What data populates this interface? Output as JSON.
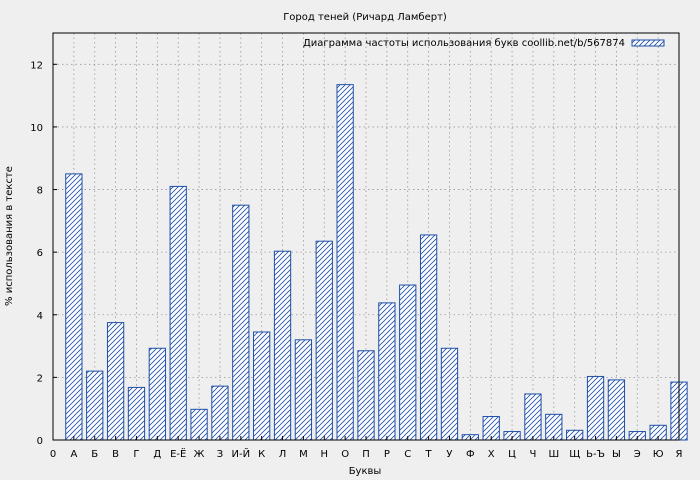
{
  "chart_data": {
    "type": "bar",
    "title": "Город теней (Ричард Ламберт)",
    "xlabel": "Буквы",
    "ylabel": "% использования в тексте",
    "legend": "Диаграмма частоты использования букв coollib.net/b/567874",
    "legend_position": "top-right",
    "grid": true,
    "ylim": [
      0,
      13
    ],
    "yticks": [
      0,
      2,
      4,
      6,
      8,
      10,
      12
    ],
    "x_origin_label": "0",
    "categories": [
      "А",
      "Б",
      "В",
      "Г",
      "Д",
      "Е-Ё",
      "Ж",
      "З",
      "И-Й",
      "К",
      "Л",
      "М",
      "Н",
      "О",
      "П",
      "Р",
      "С",
      "Т",
      "У",
      "Ф",
      "Х",
      "Ц",
      "Ч",
      "Ш",
      "Щ",
      "Ь-Ъ",
      "Ы",
      "Э",
      "Ю",
      "Я"
    ],
    "values": [
      8.5,
      2.2,
      3.75,
      1.68,
      2.93,
      8.1,
      0.98,
      1.72,
      7.5,
      3.45,
      6.03,
      3.2,
      6.35,
      11.35,
      2.85,
      4.38,
      4.95,
      6.55,
      2.93,
      0.17,
      0.75,
      0.27,
      1.47,
      0.82,
      0.31,
      2.03,
      1.92,
      0.27,
      0.47,
      1.85
    ],
    "colors": {
      "bar_stroke": "#1f4fa8",
      "hatch": "#1f4fa8",
      "bar_fill": "#ffffff",
      "grid": "#999999"
    }
  }
}
